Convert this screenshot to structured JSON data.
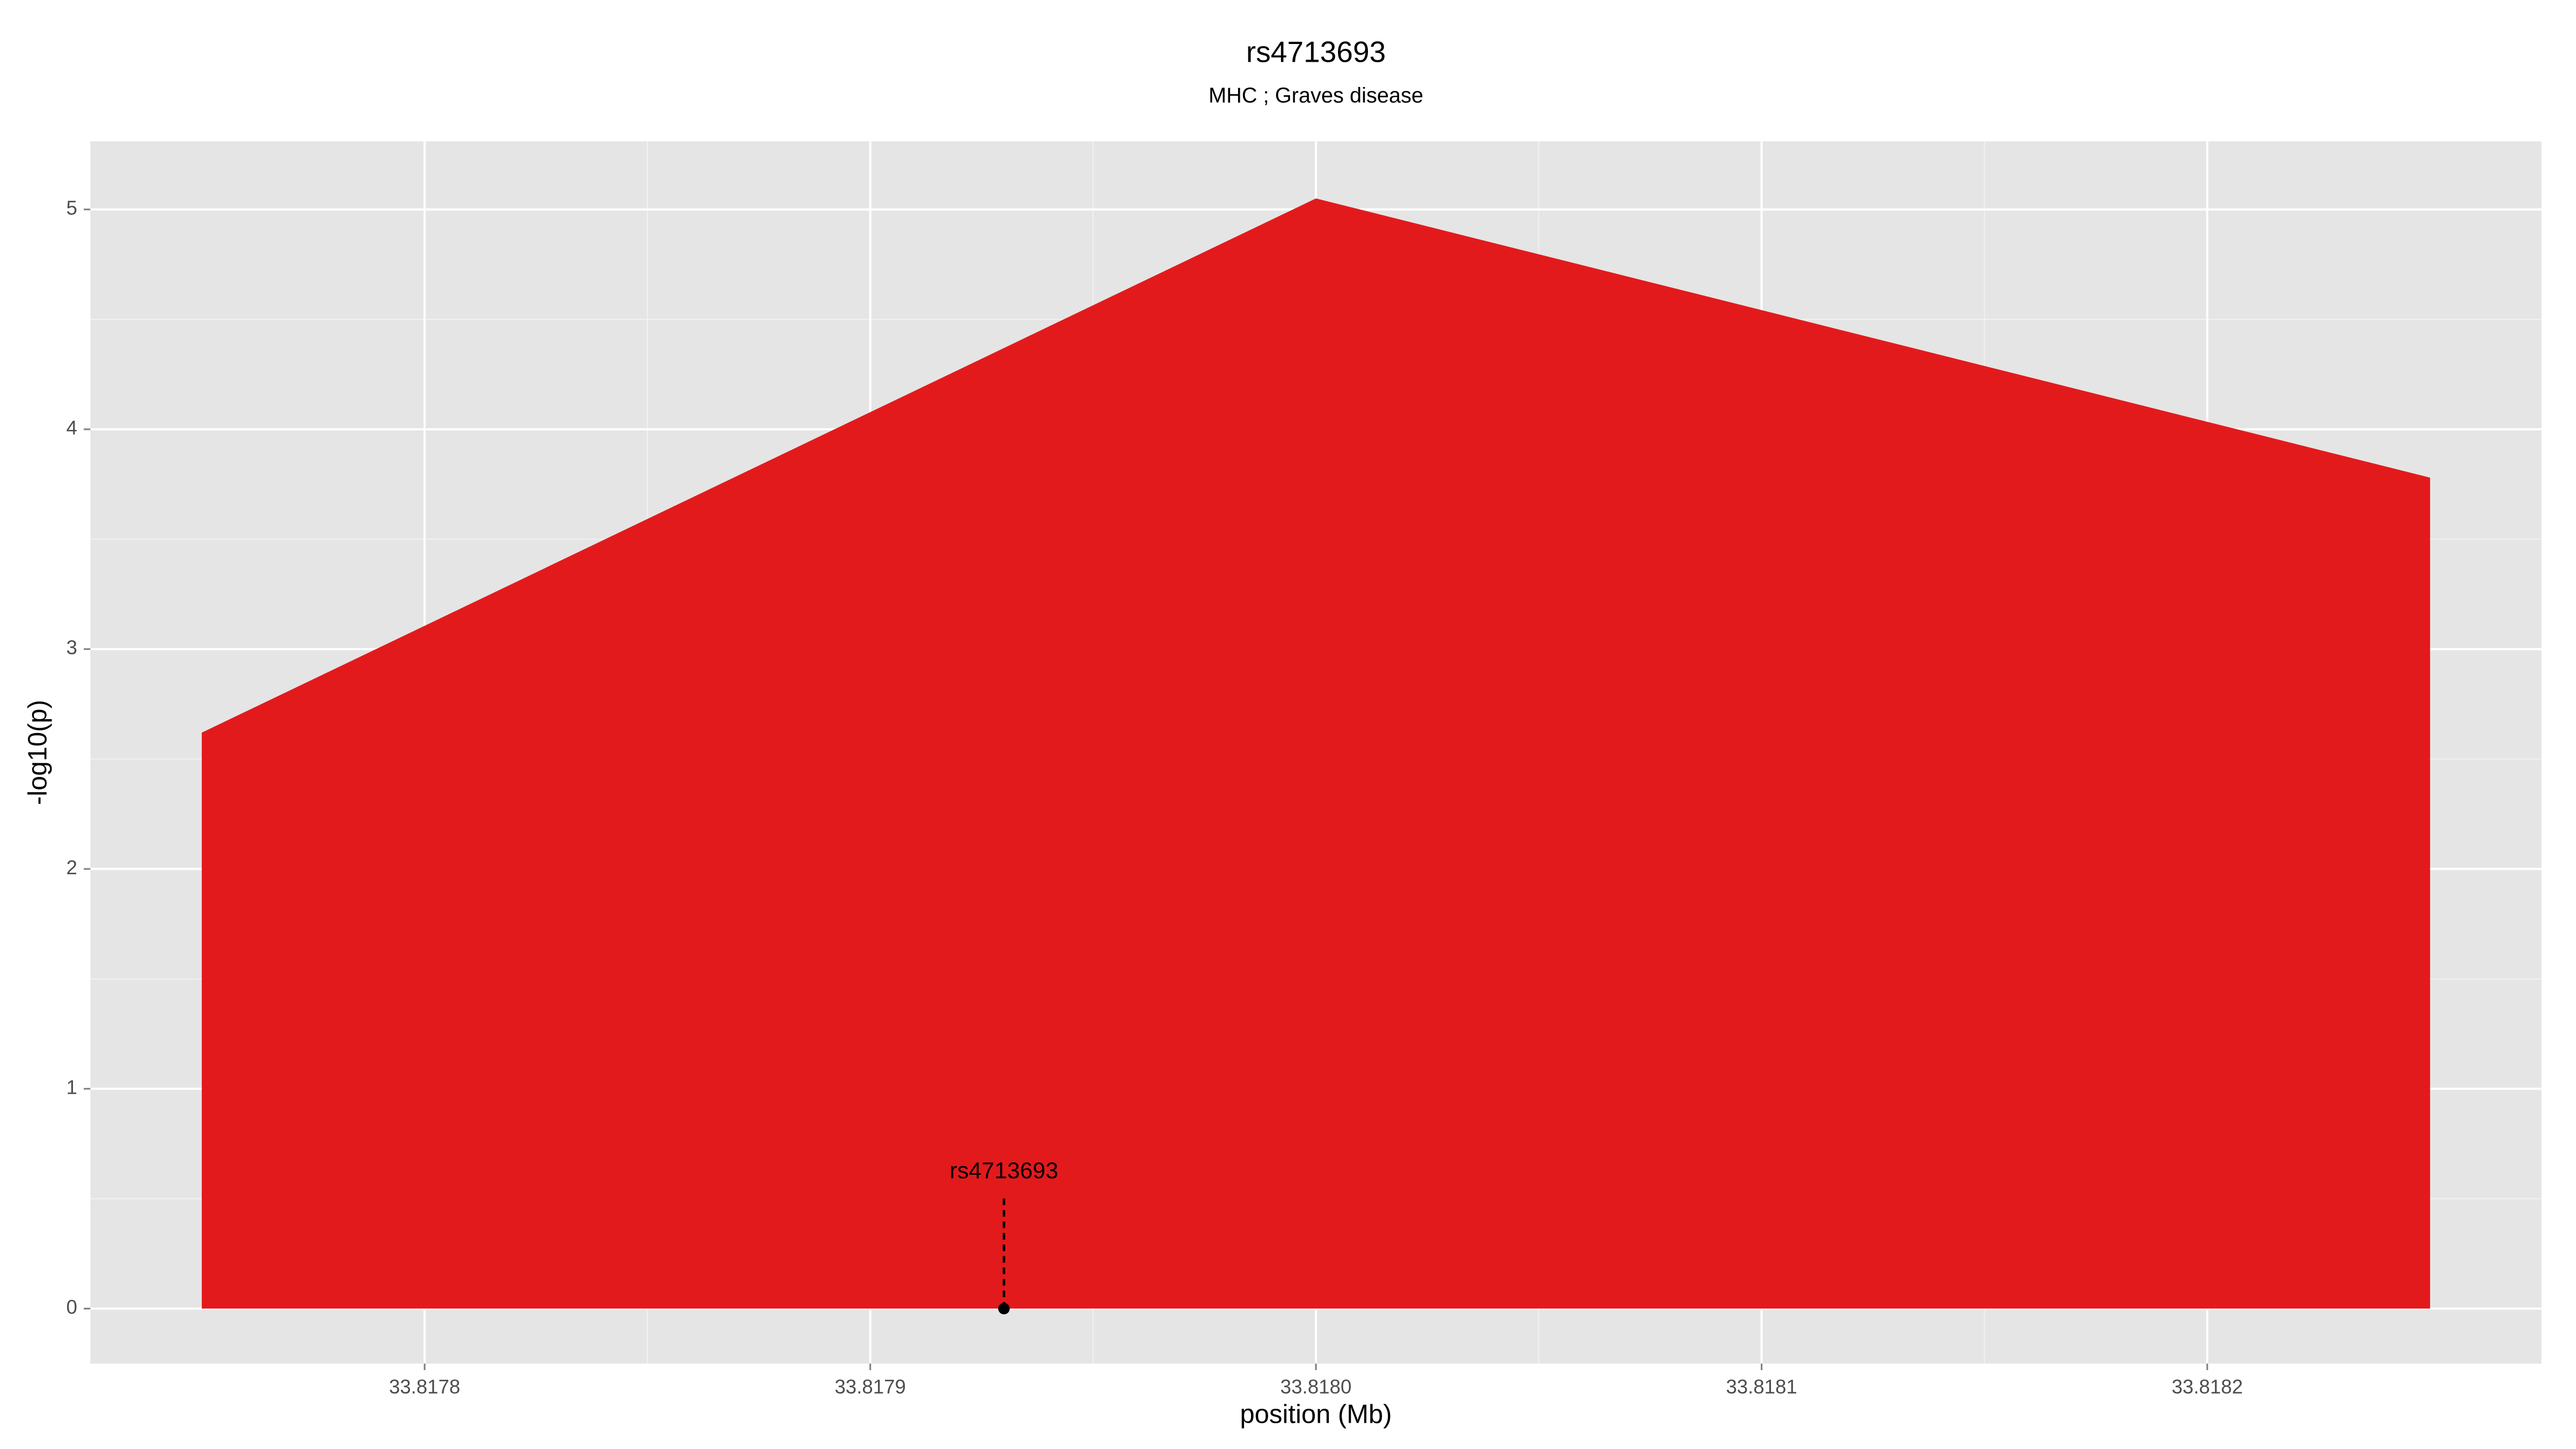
{
  "chart_data": {
    "type": "area",
    "title": "rs4713693",
    "subtitle": "MHC ; Graves disease",
    "x_label": "position (Mb)",
    "y_label": "-log10(p)",
    "x": [
      33.81775,
      33.818,
      33.81825
    ],
    "values": [
      2.62,
      5.05,
      3.78
    ],
    "color": "#e31a1c",
    "xlim": [
      33.817725,
      33.818275
    ],
    "ylim": [
      -0.25,
      5.31
    ],
    "xticks": [
      33.8178,
      {
        "value": 33.8179,
        "label": "33.8179"
      },
      {
        "value": 33.818,
        "label": "33.8180"
      },
      33.8181,
      33.8182
    ],
    "yticks": [
      0,
      1,
      2,
      3,
      4,
      5
    ],
    "grid": true,
    "annotation": {
      "label": "rs4713693",
      "x": 33.81793,
      "y": 0
    }
  }
}
